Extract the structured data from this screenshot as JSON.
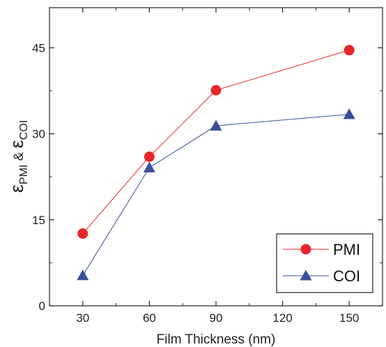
{
  "chart_data": {
    "type": "line",
    "xlabel": "Film Thickness (nm)",
    "ylabel": {
      "symbol": "ε",
      "sub1": "PMI",
      "joiner": " & ",
      "sub2": "COI"
    },
    "x": [
      30,
      60,
      90,
      150
    ],
    "xlim": [
      15,
      165
    ],
    "ylim": [
      0,
      52
    ],
    "xticks": [
      30,
      60,
      90,
      120,
      150
    ],
    "yticks": [
      0,
      15,
      30,
      45
    ],
    "grid": false,
    "legend_position": "bottom-right",
    "series": [
      {
        "name": "PMI",
        "marker": "circle",
        "color": "#e8262b",
        "values": [
          12.6,
          26.0,
          37.6,
          44.6
        ]
      },
      {
        "name": "COI",
        "marker": "triangle",
        "color": "#3a4f9c",
        "values": [
          5.3,
          24.1,
          31.4,
          33.4
        ]
      }
    ]
  }
}
